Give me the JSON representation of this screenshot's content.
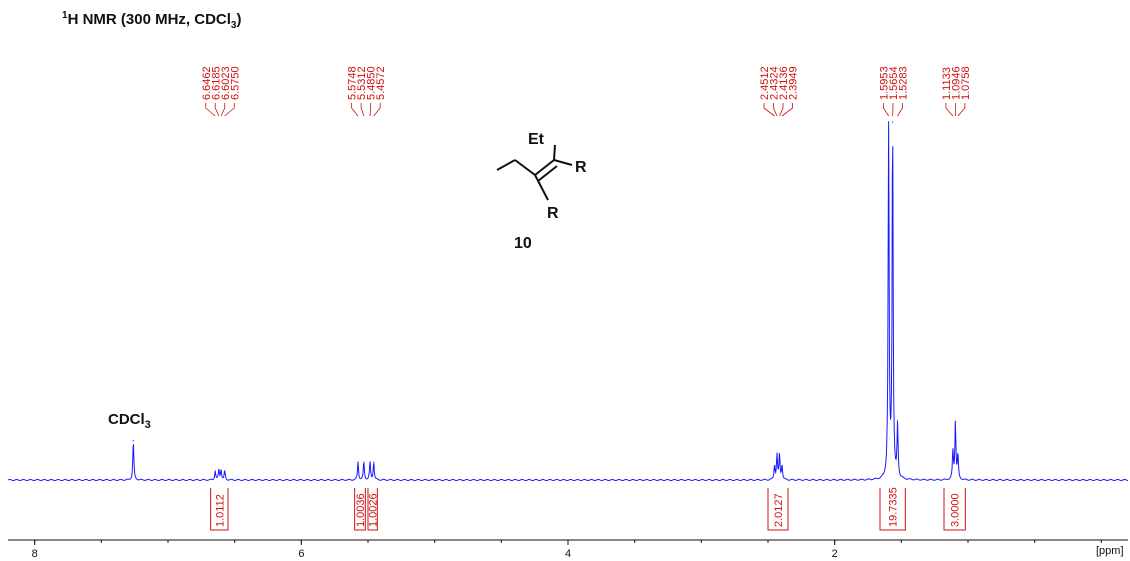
{
  "title": {
    "prefix": "1",
    "main": "H NMR (300 MHz, CDCl",
    "sub": "3",
    "end": ")"
  },
  "compound": {
    "substituent_top": "Et",
    "substituent_right": "R",
    "substituent_bottom": "R",
    "number": "10"
  },
  "solvent_label": {
    "main": "CDCl",
    "sub": "3"
  },
  "colors": {
    "spectrum": "#1a1aff",
    "annotation": "#d01010",
    "text": "#111111"
  },
  "chart_data": {
    "type": "line",
    "title": "1H NMR (300 MHz, CDCl3)",
    "xlabel": "[ppm]",
    "xlim": [
      8.2,
      -0.2
    ],
    "x_ticks": [
      8,
      6,
      4,
      2
    ],
    "x_tick_labels": [
      "8",
      "6",
      "4",
      "2"
    ],
    "unit_label": "[ppm]",
    "solvent_peak": {
      "ppm": 7.26,
      "height": 0.11,
      "label": "CDCl3"
    },
    "peaks": [
      {
        "ppm": 6.6462,
        "height": 0.025
      },
      {
        "ppm": 6.6185,
        "height": 0.028
      },
      {
        "ppm": 6.6023,
        "height": 0.028
      },
      {
        "ppm": 6.575,
        "height": 0.025
      },
      {
        "ppm": 5.5748,
        "height": 0.05
      },
      {
        "ppm": 5.5312,
        "height": 0.05
      },
      {
        "ppm": 5.485,
        "height": 0.05
      },
      {
        "ppm": 5.4572,
        "height": 0.05
      },
      {
        "ppm": 2.4512,
        "height": 0.04
      },
      {
        "ppm": 2.4324,
        "height": 0.07
      },
      {
        "ppm": 2.4136,
        "height": 0.07
      },
      {
        "ppm": 2.3949,
        "height": 0.04
      },
      {
        "ppm": 1.5953,
        "height": 0.98
      },
      {
        "ppm": 1.5654,
        "height": 1.0
      },
      {
        "ppm": 1.5283,
        "height": 0.15
      },
      {
        "ppm": 1.1133,
        "height": 0.08
      },
      {
        "ppm": 1.0946,
        "height": 0.16
      },
      {
        "ppm": 1.0758,
        "height": 0.07
      }
    ],
    "peak_label_groups": [
      {
        "labels": [
          "6.6462",
          "6.6185",
          "6.6023",
          "6.5750"
        ],
        "center_ppm": 6.61
      },
      {
        "labels": [
          "5.5748",
          "5.5312",
          "5.4850",
          "5.4572"
        ],
        "center_ppm": 5.516
      },
      {
        "labels": [
          "2.4512",
          "2.4324",
          "2.4136",
          "2.3949"
        ],
        "center_ppm": 2.423
      },
      {
        "labels": [
          "1.5953",
          "1.5654",
          "1.5283"
        ],
        "center_ppm": 1.563
      },
      {
        "labels": [
          "1.1133",
          "1.0946",
          "1.0758"
        ],
        "center_ppm": 1.0946
      }
    ],
    "integrals": [
      {
        "value": "1.0112",
        "from_ppm": 6.68,
        "to_ppm": 6.55
      },
      {
        "value": "1.0036",
        "from_ppm": 5.6,
        "to_ppm": 5.52
      },
      {
        "value": "1.0026",
        "from_ppm": 5.5,
        "to_ppm": 5.43
      },
      {
        "value": "2.0127",
        "from_ppm": 2.5,
        "to_ppm": 2.35
      },
      {
        "value": "19.7335",
        "from_ppm": 1.66,
        "to_ppm": 1.47
      },
      {
        "value": "3.0000",
        "from_ppm": 1.18,
        "to_ppm": 1.02
      }
    ],
    "grid": false
  }
}
